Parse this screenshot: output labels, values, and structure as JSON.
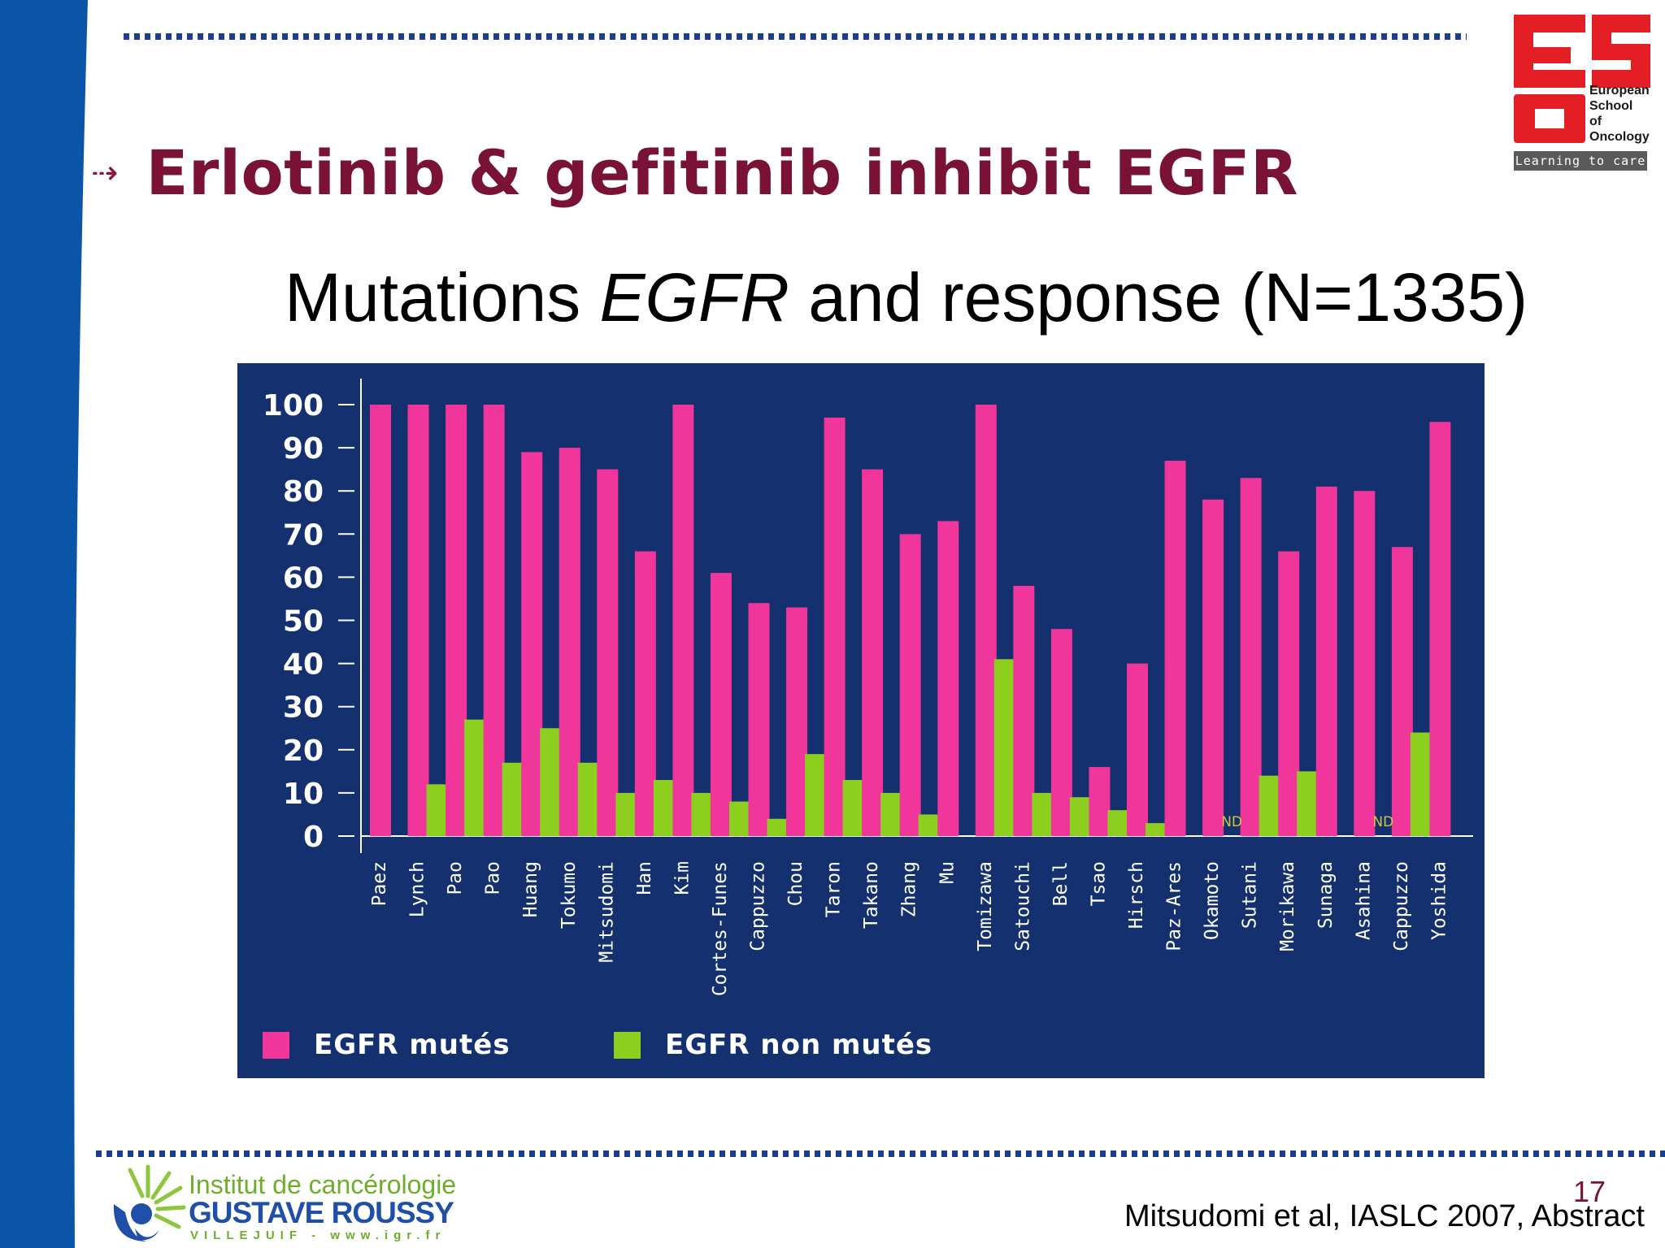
{
  "slide": {
    "title": "Erlotinib & gefitinib inhibit EGFR",
    "title_arrow": "⇢",
    "subtitle_part1": "Mutations ",
    "subtitle_em": "EGFR",
    "subtitle_part2": " and response (N=1335)",
    "page_number": "17",
    "citation": "Mitsudomi et al, IASLC 2007, Abstract",
    "title_color": "#7a1238",
    "band_color": "#0a55a8"
  },
  "logo_eso": {
    "line1": "European",
    "line2": "School",
    "line3": "of",
    "line4": "Oncology",
    "tagline": "Learning to care",
    "color": "#e31e24"
  },
  "logo_igr": {
    "line1": "Institut de cancérologie",
    "line2": "GUSTAVE ROUSSY",
    "line3": "VILLEJUIF - www.igr.fr"
  },
  "chart_data": {
    "type": "bar",
    "ylim": [
      0,
      100
    ],
    "yticks": [
      "0",
      "10",
      "20",
      "30",
      "40",
      "50",
      "60",
      "70",
      "80",
      "90",
      "100"
    ],
    "categories": [
      "Paez",
      "Lynch",
      "Pao",
      "Pao",
      "Huang",
      "Tokumo",
      "Mitsudomi",
      "Han",
      "Kim",
      "Cortes-Funes",
      "Cappuzzo",
      "Chou",
      "Taron",
      "Takano",
      "Zhang",
      "Mu",
      "Tomizawa",
      "Satouchi",
      "Bell",
      "Tsao",
      "Hirsch",
      "Paz-Ares",
      "Okamoto",
      "Sutani",
      "Morikawa",
      "Sunaga",
      "Asahina",
      "Cappuzzo",
      "Yoshida"
    ],
    "series": [
      {
        "name": "EGFR mutés",
        "color": "#f0359b",
        "values": [
          100,
          100,
          100,
          100,
          89,
          90,
          85,
          66,
          100,
          61,
          54,
          53,
          97,
          85,
          70,
          73,
          100,
          58,
          48,
          16,
          40,
          87,
          78,
          83,
          66,
          81,
          80,
          67,
          96
        ]
      },
      {
        "name": "EGFR non mutés",
        "color": "#8ccf1e",
        "values": [
          null,
          12,
          27,
          17,
          25,
          17,
          10,
          13,
          10,
          8,
          4,
          19,
          13,
          10,
          5,
          null,
          41,
          10,
          9,
          6,
          3,
          null,
          null,
          14,
          15,
          null,
          null,
          24,
          null
        ]
      }
    ],
    "nd_label": "ND",
    "nd_categories": [
      22,
      26
    ],
    "background": "#14306f"
  }
}
